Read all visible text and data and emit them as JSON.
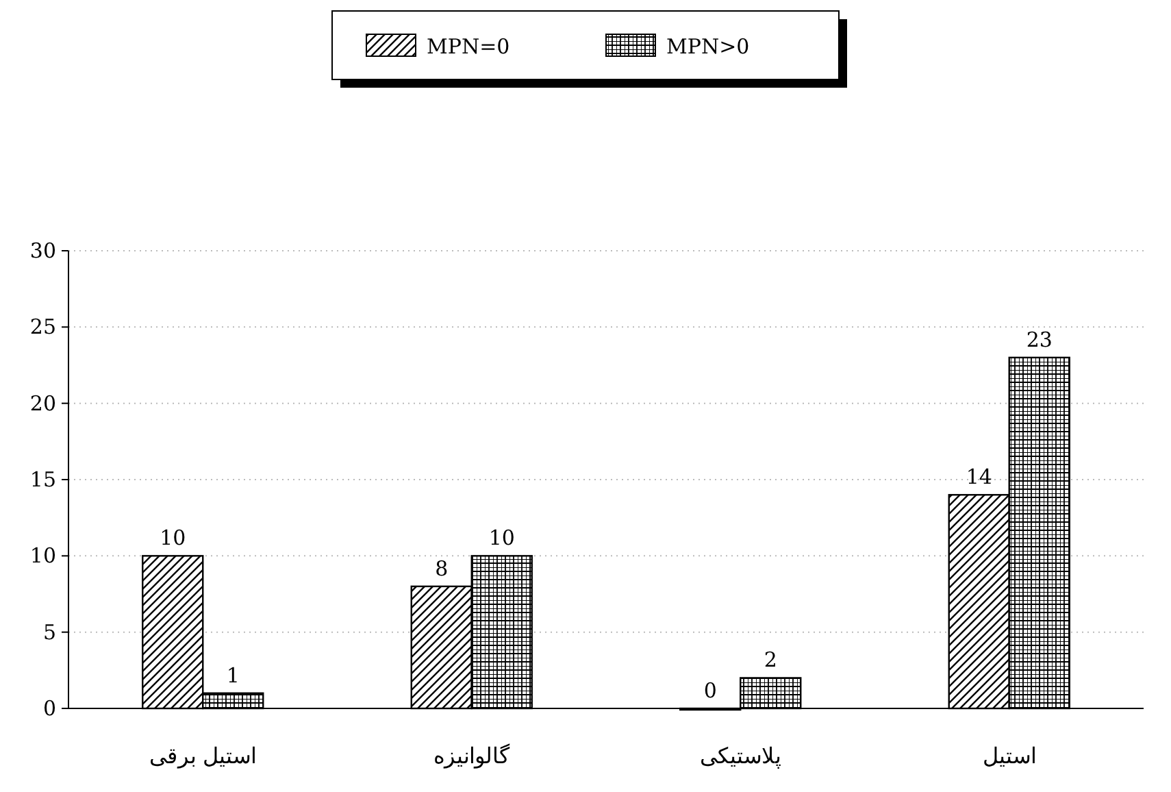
{
  "chart_data": {
    "type": "bar",
    "categories": [
      "استیل برقی",
      "گالوانیزه",
      "پلاستیکی",
      "استیل"
    ],
    "series": [
      {
        "name": "MPN=0",
        "color": "#000000",
        "values": [
          10,
          8,
          0,
          14
        ]
      },
      {
        "name": "MPN>0",
        "color": "#000000",
        "values": [
          1,
          10,
          2,
          23
        ]
      }
    ],
    "ylim": [
      0,
      30
    ],
    "yticks": [
      0,
      5,
      10,
      15,
      20,
      25,
      30
    ],
    "grid": "y",
    "legend": "top",
    "data_labels": true
  }
}
